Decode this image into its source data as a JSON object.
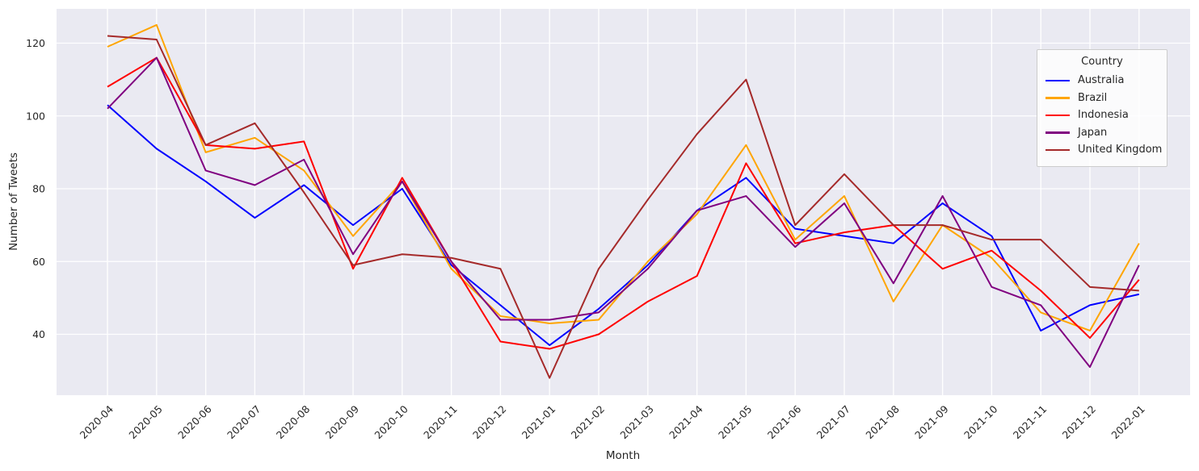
{
  "figure": {
    "plot_background": "#EAEAF2",
    "grid_color": "#FFFFFF",
    "text_color": "#262626",
    "legend_background": "rgba(255,255,255,0.78)",
    "legend_border": "#CCCCCC"
  },
  "legend": {
    "title": "Country"
  },
  "chart_data": {
    "type": "line",
    "title": "",
    "xlabel": "Month",
    "ylabel": "Number of Tweets",
    "grid": true,
    "legend_position": "upper right",
    "yticks": [
      40,
      60,
      80,
      100,
      120
    ],
    "ylim": [
      23,
      129
    ],
    "categories": [
      "2020-04",
      "2020-05",
      "2020-06",
      "2020-07",
      "2020-08",
      "2020-09",
      "2020-10",
      "2020-11",
      "2020-12",
      "2021-01",
      "2021-02",
      "2021-03",
      "2021-04",
      "2021-05",
      "2021-06",
      "2021-07",
      "2021-08",
      "2021-09",
      "2021-10",
      "2021-11",
      "2021-12",
      "2022-01"
    ],
    "series": [
      {
        "name": "Australia",
        "color": "#0000FF",
        "values": [
          103,
          91,
          82,
          72,
          81,
          70,
          80,
          59,
          48,
          37,
          47,
          59,
          74,
          83,
          69,
          67,
          65,
          76,
          67,
          41,
          48,
          51
        ]
      },
      {
        "name": "Brazil",
        "color": "#FFA500",
        "values": [
          119,
          125,
          90,
          94,
          85,
          67,
          82,
          58,
          45,
          43,
          44,
          60,
          73,
          92,
          66,
          78,
          49,
          70,
          61,
          46,
          41,
          65
        ]
      },
      {
        "name": "Indonesia",
        "color": "#FF0000",
        "values": [
          108,
          116,
          92,
          91,
          93,
          58,
          83,
          60,
          38,
          36,
          40,
          49,
          56,
          87,
          65,
          68,
          70,
          58,
          63,
          52,
          39,
          55
        ]
      },
      {
        "name": "Japan",
        "color": "#800080",
        "values": [
          102,
          116,
          85,
          81,
          88,
          62,
          82,
          60,
          44,
          44,
          46,
          58,
          74,
          78,
          64,
          76,
          54,
          78,
          53,
          48,
          31,
          59
        ]
      },
      {
        "name": "United Kingdom",
        "color": "#A52A2A",
        "values": [
          122,
          121,
          92,
          98,
          79,
          59,
          62,
          61,
          58,
          28,
          58,
          77,
          95,
          110,
          70,
          84,
          70,
          70,
          66,
          66,
          53,
          52
        ]
      }
    ]
  }
}
